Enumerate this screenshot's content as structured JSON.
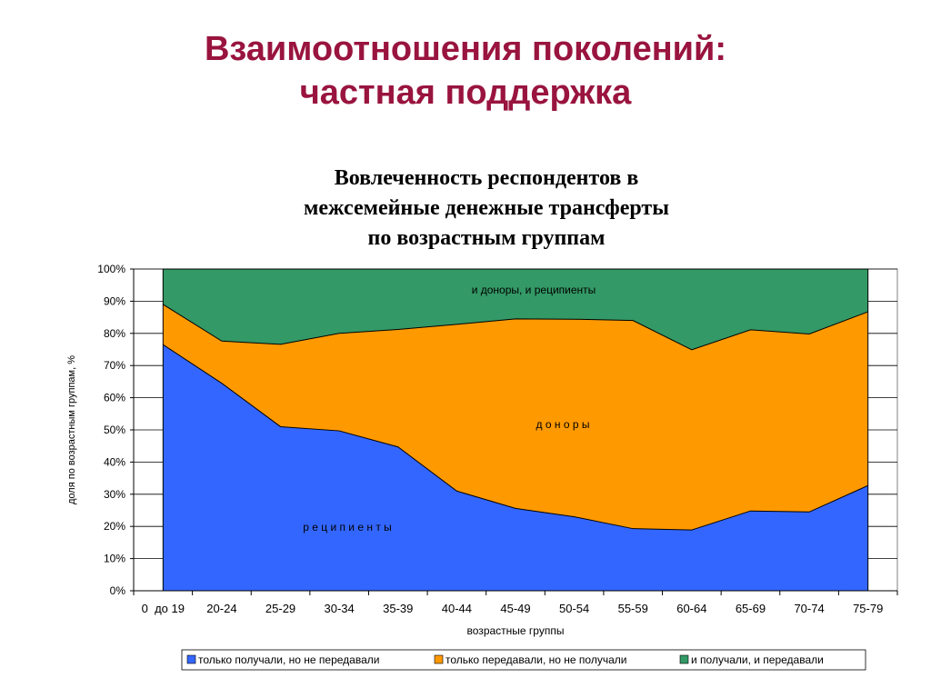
{
  "slide": {
    "title_line1": "Взаимоотношения поколений:",
    "title_line2": "частная поддержка"
  },
  "colors": {
    "title": "#99143f",
    "recipients": "#3366ff",
    "donors": "#ff9900",
    "both": "#339966"
  },
  "chart_data": {
    "type": "area",
    "stacked": true,
    "title_lines": [
      "Вовлеченность респондентов в",
      "межсемейные денежные трансферты",
      "по возрастным группам"
    ],
    "xlabel": "возрастные группы",
    "ylabel": "доля по возрастным группам, %",
    "categories": [
      "0  до 19",
      "20-24",
      "25-29",
      "30-34",
      "35-39",
      "40-44",
      "45-49",
      "50-54",
      "55-59",
      "60-64",
      "65-69",
      "70-74",
      "75-79"
    ],
    "ylim": [
      0,
      100
    ],
    "yticks": [
      "0%",
      "10%",
      "20%",
      "30%",
      "40%",
      "50%",
      "60%",
      "70%",
      "80%",
      "90%",
      "100%"
    ],
    "grid": true,
    "series": [
      {
        "name": "только получали, но не передавали",
        "color": "#3366ff",
        "values": [
          76.5,
          64.5,
          51,
          49.7,
          44.7,
          31,
          25.6,
          23,
          19.3,
          18.9,
          24.8,
          24.5,
          32.7
        ]
      },
      {
        "name": "только передавали, но не получали",
        "color": "#ff9900",
        "values": [
          12.5,
          13.1,
          25.6,
          30.3,
          36.5,
          51.8,
          58.9,
          61.4,
          64.7,
          56,
          56.3,
          55.3,
          54
        ]
      },
      {
        "name": "и получали, и передавали",
        "color": "#339966",
        "values": [
          11,
          22.4,
          23.4,
          20,
          18.8,
          17.2,
          15.5,
          15.6,
          16,
          25.1,
          18.9,
          20.2,
          13.3
        ]
      }
    ],
    "annotations": [
      {
        "text": "и доноры, и реципиенты"
      },
      {
        "text": "д о н о р ы"
      },
      {
        "text": "р е ц и п и е н т ы"
      }
    ],
    "legend_position": "bottom"
  }
}
